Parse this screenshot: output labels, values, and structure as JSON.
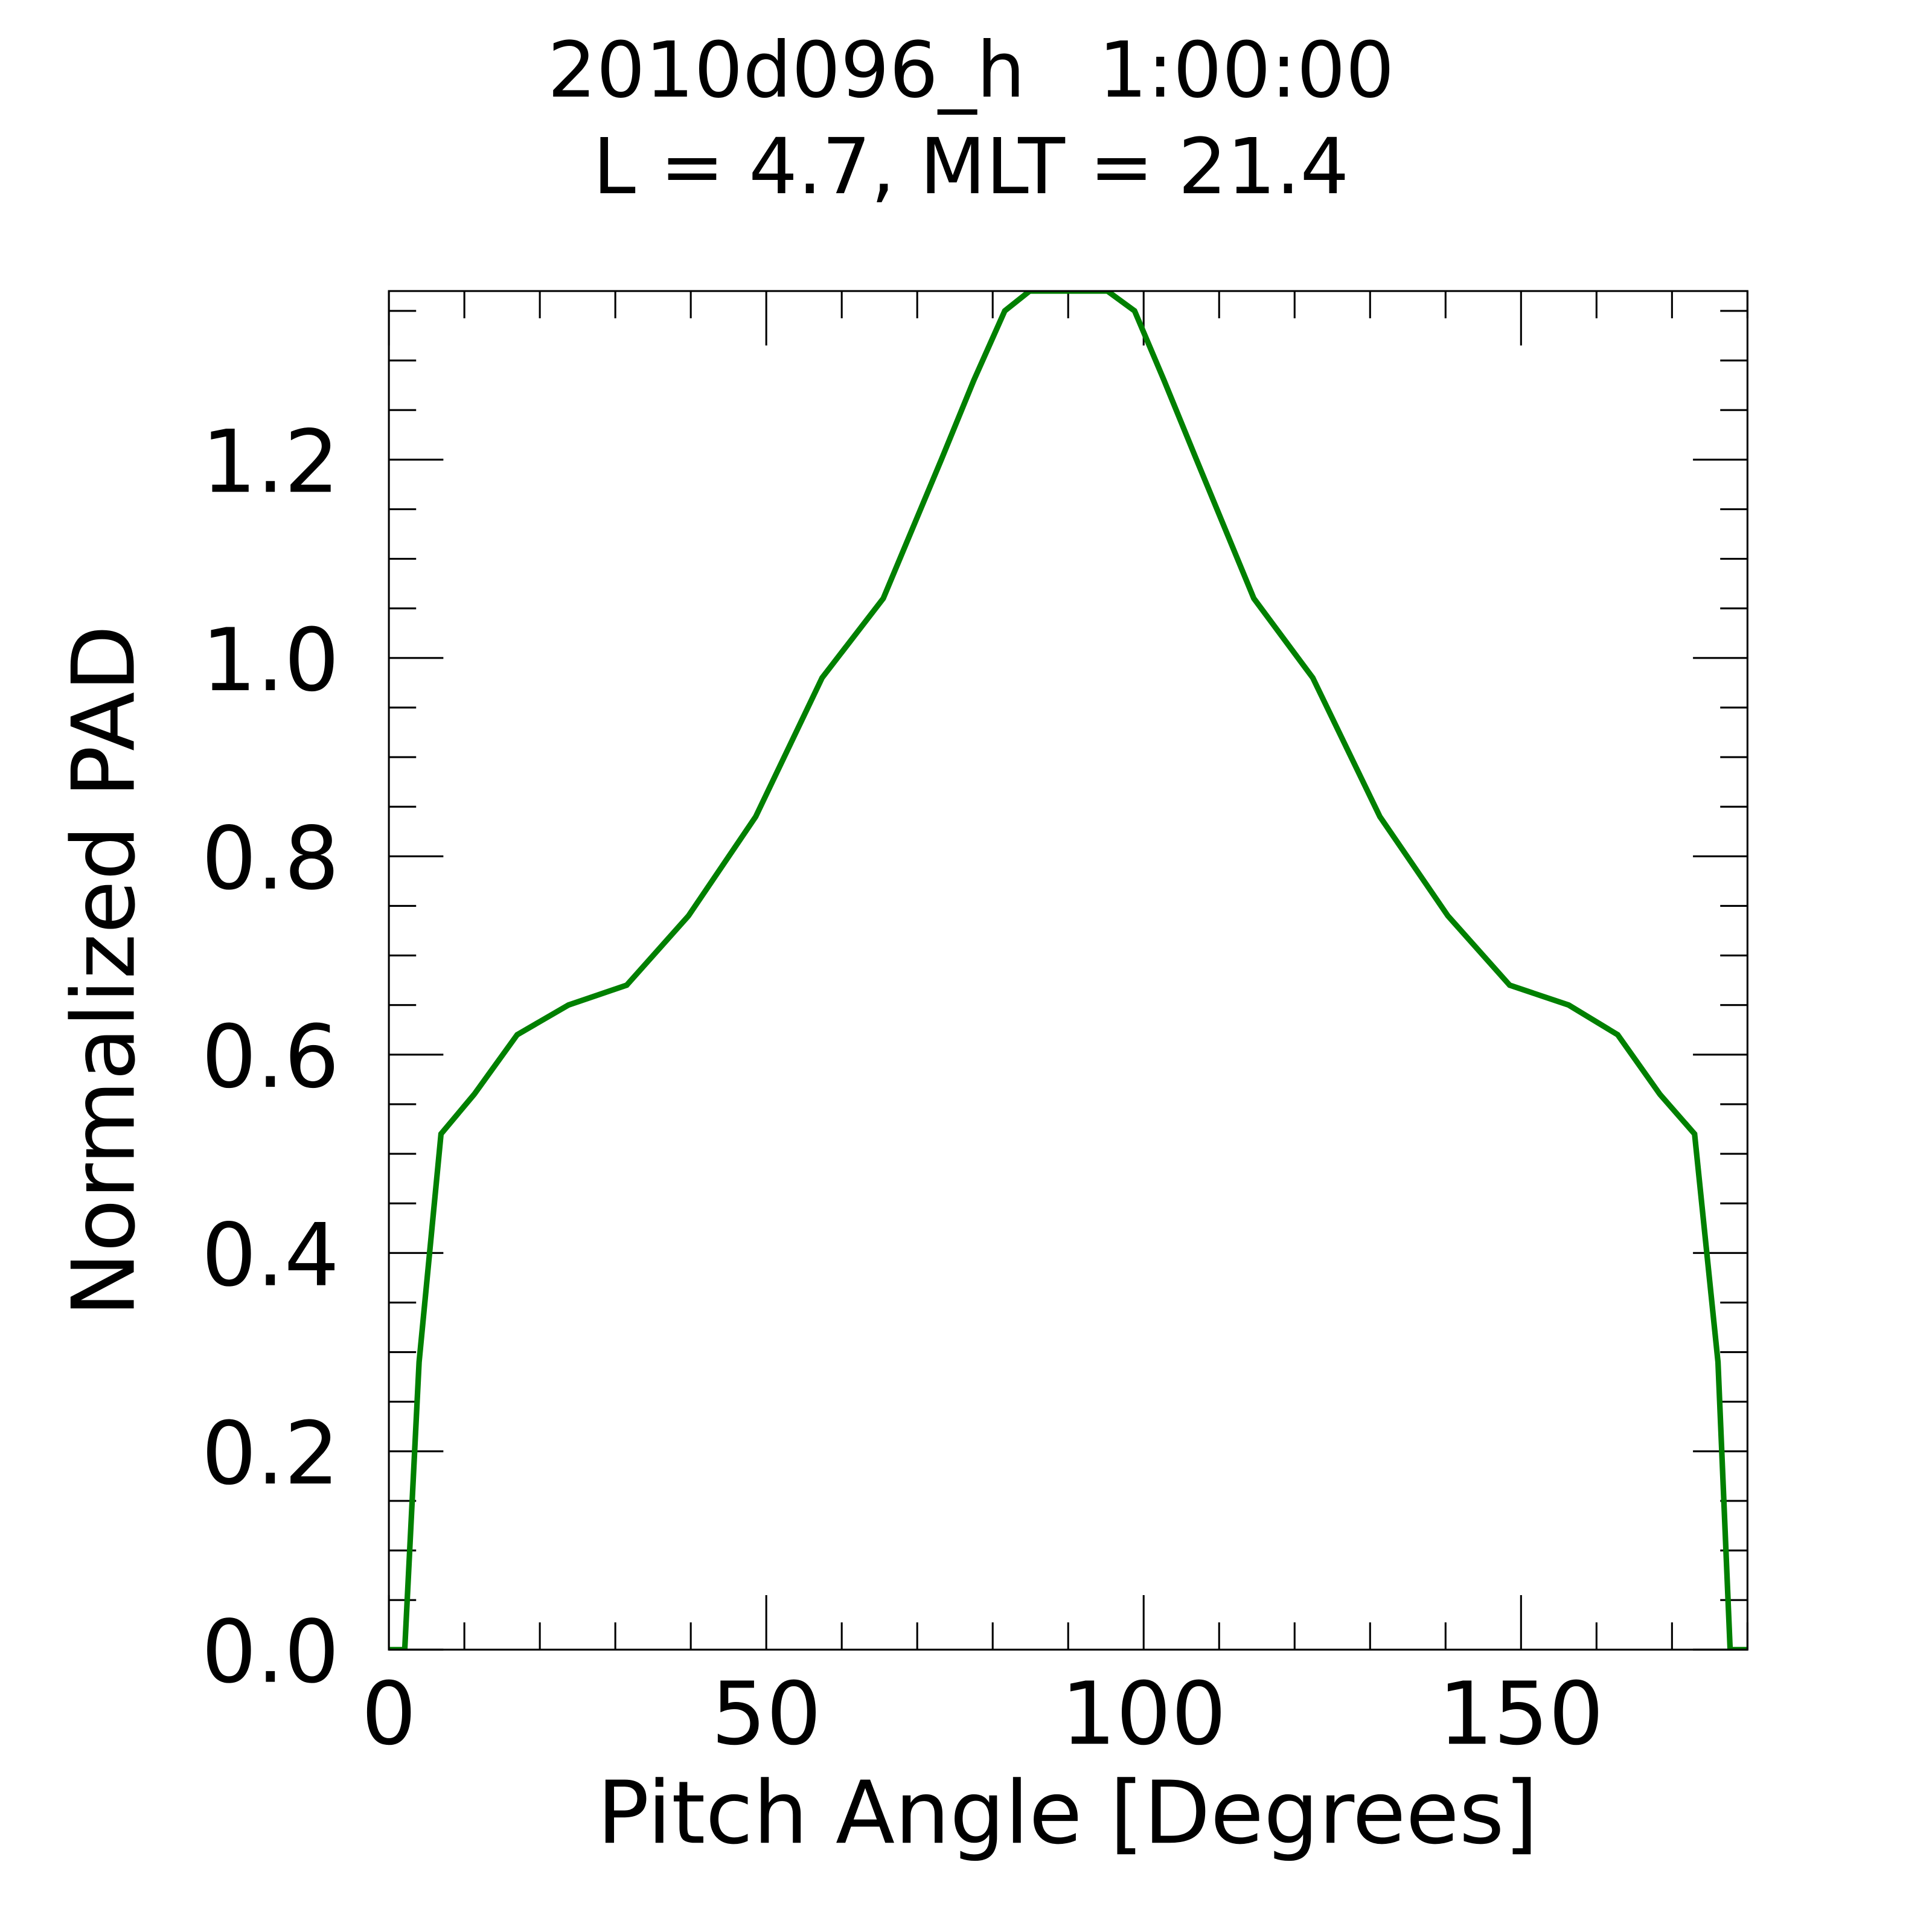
{
  "chart_data": {
    "type": "line",
    "title": "2010d096_h   1:00:00",
    "subtitle": "L = 4.7, MLT = 21.4",
    "xlabel": "Pitch Angle [Degrees]",
    "ylabel": "Normalized PAD",
    "xlim": [
      0,
      180
    ],
    "ylim": [
      0,
      1.37
    ],
    "xticks": [
      0,
      50,
      100,
      150
    ],
    "xtick_labels": [
      "0",
      "50",
      "100",
      "150"
    ],
    "yticks": [
      0,
      0.2,
      0.4,
      0.6,
      0.8,
      1.0,
      1.2
    ],
    "ytick_labels": [
      "0.0",
      "0.2",
      "0.4",
      "0.6",
      "0.8",
      "1.0",
      "1.2"
    ],
    "grid": false,
    "series": [
      {
        "name": "PAD",
        "color": "#008000",
        "x": [
          0,
          2.1,
          4,
          6.9,
          11.3,
          17,
          23.8,
          31.5,
          39.7,
          48.6,
          57.4,
          65.5,
          73.2,
          77.5,
          81.6,
          84.9,
          95.2,
          98.8,
          102.7,
          107,
          114.6,
          122.4,
          131.3,
          140.3,
          148.5,
          156.3,
          162.8,
          168.4,
          173,
          176.1,
          177.7,
          180
        ],
        "y": [
          0,
          0,
          0.29,
          0.52,
          0.56,
          0.62,
          0.65,
          0.67,
          0.74,
          0.84,
          0.98,
          1.06,
          1.2,
          1.28,
          1.35,
          1.37,
          1.37,
          1.35,
          1.28,
          1.2,
          1.06,
          0.98,
          0.84,
          0.74,
          0.67,
          0.65,
          0.62,
          0.56,
          0.52,
          0.29,
          0,
          0
        ]
      }
    ]
  }
}
